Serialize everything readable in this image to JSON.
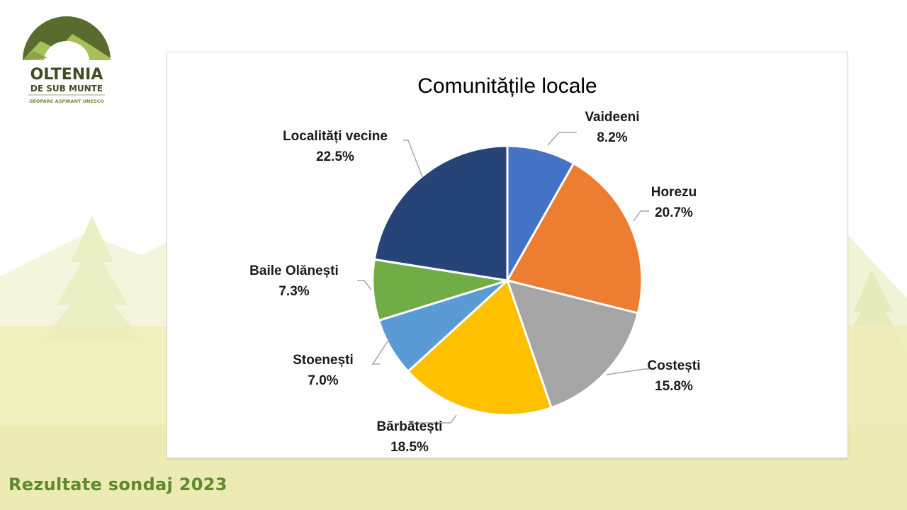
{
  "logo": {
    "line1": "OLTENIA",
    "line2": "DE SUB MUNTE",
    "line3": "GEOPARC ASPIRANT UNESCO"
  },
  "footer": {
    "text": "Rezultate sondaj 2023"
  },
  "colors": {
    "accent": "#5e8a2c",
    "background": "#eeedb8"
  },
  "chart_data": {
    "type": "pie",
    "title": "Comunitățile locale",
    "start": "top, clockwise",
    "slices": [
      {
        "label": "Vaideeni",
        "value": 8.2,
        "display": "8.2%",
        "color": "#4472c4"
      },
      {
        "label": "Horezu",
        "value": 20.7,
        "display": "20.7%",
        "color": "#ed7d31"
      },
      {
        "label": "Costești",
        "value": 15.8,
        "display": "15.8%",
        "color": "#a5a5a5"
      },
      {
        "label": "Bărbătești",
        "value": 18.5,
        "display": "18.5%",
        "color": "#ffc000"
      },
      {
        "label": "Stoenești",
        "value": 7.0,
        "display": "7.0%",
        "color": "#5b9bd5"
      },
      {
        "label": "Baile Olănești",
        "value": 7.3,
        "display": "7.3%",
        "color": "#70ad47"
      },
      {
        "label": "Localități vecine",
        "value": 22.5,
        "display": "22.5%",
        "color": "#264478"
      }
    ]
  }
}
